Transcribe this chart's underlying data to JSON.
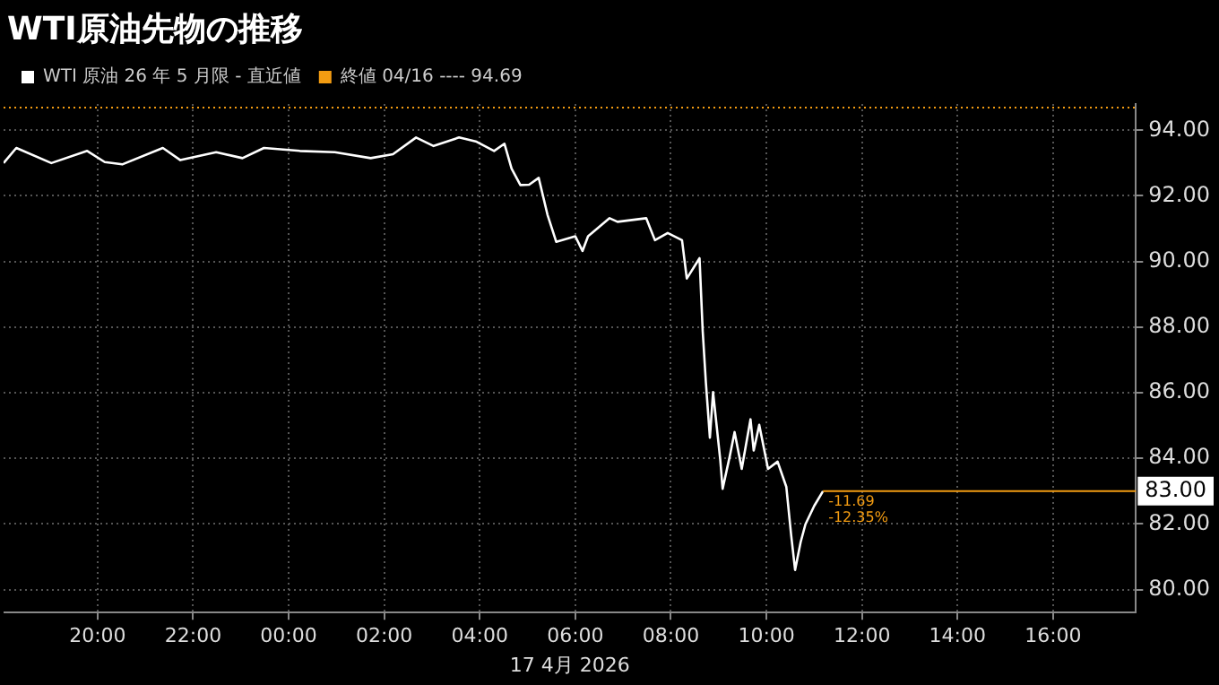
{
  "chart_data": {
    "type": "line",
    "title": "WTI原油先物の推移",
    "xlabel": "17 4月 2026",
    "x": [
      "2026-04-16T18:02",
      "2026-04-16T18:18",
      "2026-04-16T19:02",
      "2026-04-16T19:47",
      "2026-04-16T20:09",
      "2026-04-16T20:31",
      "2026-04-16T21:22",
      "2026-04-16T21:44",
      "2026-04-16T22:29",
      "2026-04-16T23:02",
      "2026-04-16T23:29",
      "2026-04-17T00:14",
      "2026-04-17T00:58",
      "2026-04-17T01:43",
      "2026-04-17T02:11",
      "2026-04-17T02:40",
      "2026-04-17T03:02",
      "2026-04-17T03:34",
      "2026-04-17T03:56",
      "2026-04-17T04:18",
      "2026-04-17T04:31",
      "2026-04-17T04:40",
      "2026-04-17T04:51",
      "2026-04-17T05:02",
      "2026-04-17T05:14",
      "2026-04-17T05:25",
      "2026-04-17T05:36",
      "2026-04-17T06:00",
      "2026-04-17T06:09",
      "2026-04-17T06:16",
      "2026-04-17T06:43",
      "2026-04-17T06:53",
      "2026-04-17T07:29",
      "2026-04-17T07:40",
      "2026-04-17T07:56",
      "2026-04-17T08:14",
      "2026-04-17T08:20",
      "2026-04-17T08:36",
      "2026-04-17T08:40",
      "2026-04-17T08:44",
      "2026-04-17T08:49",
      "2026-04-17T08:53",
      "2026-04-17T09:02",
      "2026-04-17T09:05",
      "2026-04-17T09:14",
      "2026-04-17T09:20",
      "2026-04-17T09:29",
      "2026-04-17T09:40",
      "2026-04-17T09:44",
      "2026-04-17T09:51",
      "2026-04-17T10:02",
      "2026-04-17T10:14",
      "2026-04-17T10:25",
      "2026-04-17T10:31",
      "2026-04-17T10:36",
      "2026-04-17T10:43",
      "2026-04-17T10:49",
      "2026-04-17T11:00",
      "2026-04-17T11:11"
    ],
    "series": [
      {
        "name": "WTI 原油 26 年 5 月限 - 直近値",
        "color": "#ffffff",
        "values": [
          93.0,
          93.46,
          93.0,
          93.37,
          93.03,
          92.96,
          93.46,
          93.09,
          93.33,
          93.15,
          93.46,
          93.37,
          93.33,
          93.15,
          93.27,
          93.78,
          93.52,
          93.78,
          93.65,
          93.37,
          93.59,
          92.83,
          92.33,
          92.34,
          92.55,
          91.43,
          90.6,
          90.77,
          90.32,
          90.77,
          91.32,
          91.21,
          91.32,
          90.65,
          90.87,
          90.65,
          89.48,
          90.1,
          87.87,
          86.3,
          84.63,
          86.02,
          83.96,
          83.07,
          84.07,
          84.8,
          83.68,
          85.19,
          84.24,
          85.02,
          83.68,
          83.9,
          83.13,
          81.67,
          80.6,
          81.45,
          81.99,
          82.55,
          83.0
        ]
      }
    ],
    "xlim": [
      "2026-04-16T18:02",
      "2026-04-17T17:44"
    ],
    "ylim": [
      79.3,
      94.8
    ],
    "xticks": [
      {
        "value": "2026-04-16T20:00",
        "label": "20:00"
      },
      {
        "value": "2026-04-16T22:00",
        "label": "22:00"
      },
      {
        "value": "2026-04-17T00:00",
        "label": "00:00"
      },
      {
        "value": "2026-04-17T02:00",
        "label": "02:00"
      },
      {
        "value": "2026-04-17T04:00",
        "label": "04:00"
      },
      {
        "value": "2026-04-17T06:00",
        "label": "06:00"
      },
      {
        "value": "2026-04-17T08:00",
        "label": "08:00"
      },
      {
        "value": "2026-04-17T10:00",
        "label": "10:00"
      },
      {
        "value": "2026-04-17T12:00",
        "label": "12:00"
      },
      {
        "value": "2026-04-17T14:00",
        "label": "14:00"
      },
      {
        "value": "2026-04-17T16:00",
        "label": "16:00"
      }
    ],
    "yticks": [
      {
        "value": 80,
        "label": "80.00"
      },
      {
        "value": 82,
        "label": "82.00"
      },
      {
        "value": 84,
        "label": "84.00"
      },
      {
        "value": 86,
        "label": "86.00"
      },
      {
        "value": 88,
        "label": "88.00"
      },
      {
        "value": 90,
        "label": "90.00"
      },
      {
        "value": 92,
        "label": "92.00"
      },
      {
        "value": 94,
        "label": "94.00"
      }
    ],
    "ref_lines": [
      {
        "axis": "y",
        "value": 94.69,
        "label": "終値 04/16 ---- 94.69",
        "color": "#f39c12",
        "line_style": "dotted"
      },
      {
        "axis": "y",
        "value": 83.0,
        "label": "83.00",
        "color": "#f39c12",
        "line_style": "solid"
      }
    ],
    "annotations": [
      {
        "text": "-11.69",
        "x": "2026-04-17T11:11",
        "y": 83.0
      },
      {
        "text": "-12.35%",
        "x": "2026-04-17T11:11",
        "y": 83.0
      }
    ],
    "grid": true,
    "legend": "top left",
    "marker": "none",
    "line_style": "solid"
  }
}
